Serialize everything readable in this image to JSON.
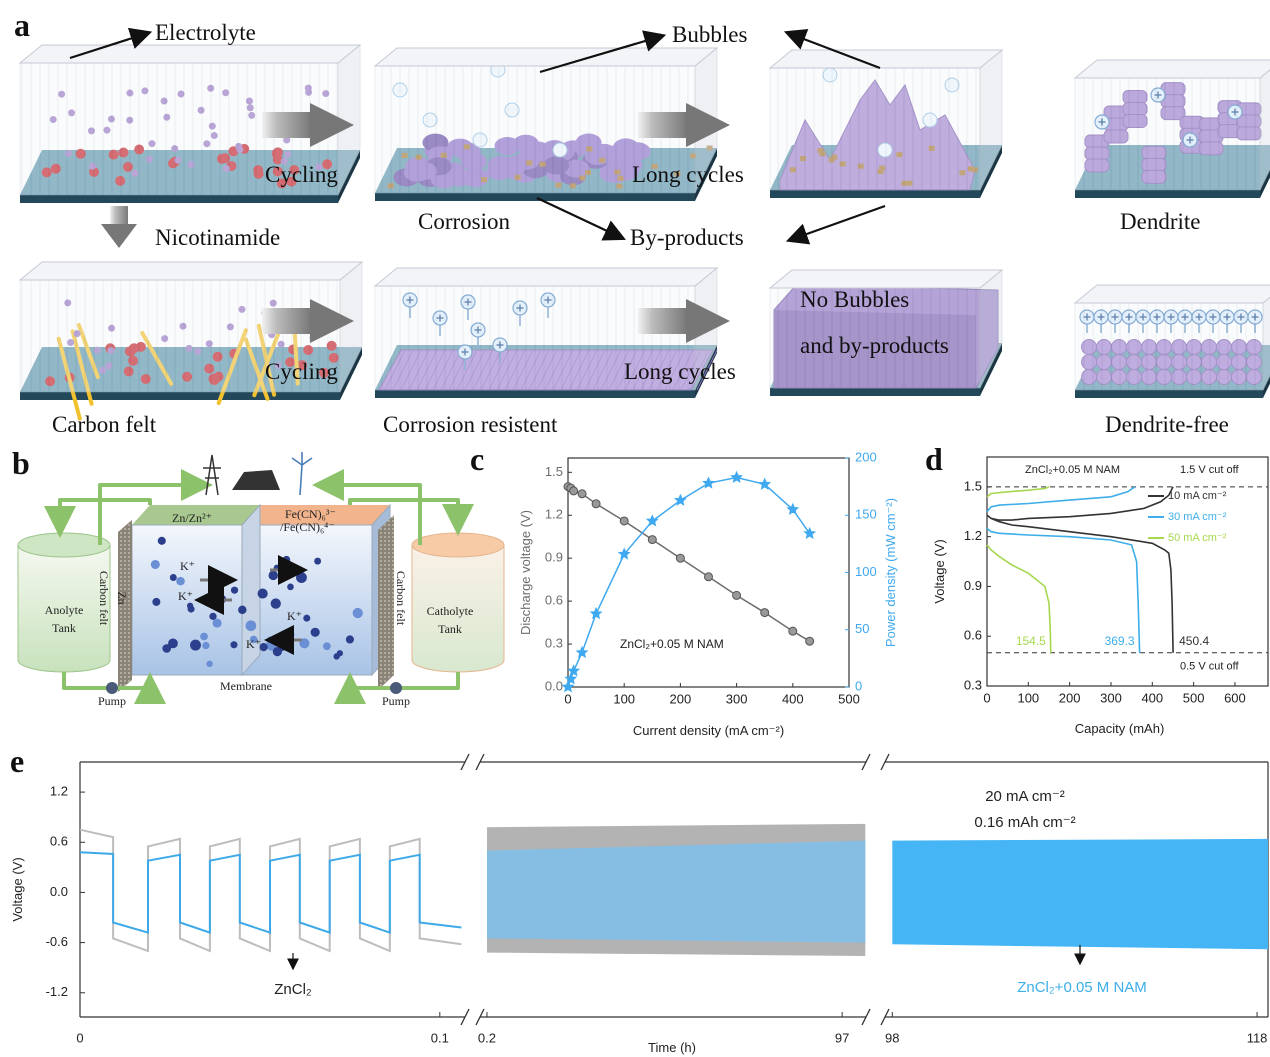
{
  "panel_a": {
    "label": "a",
    "electrolyte": "Electrolyte",
    "bubbles": "Bubbles",
    "cycling_1": "Cycling",
    "long_cycles_1": "Long cycles",
    "corrosion": "Corrosion",
    "by_products": "By-products",
    "nicotinamide": "Nicotinamide",
    "dendrite": "Dendrite",
    "cycling_2": "Cycling",
    "long_cycles_2": "Long cycles",
    "no_bubbles": "No Bubbles",
    "and_by_products": "and by-products",
    "carbon_felt": "Carbon felt",
    "corrosion_resistent": "Corrosion resistent",
    "dendrite_free": "Dendrite-free"
  },
  "panel_b": {
    "label": "b",
    "anode": "Zn/Zn²⁺",
    "cathode_1": "Fe(CN)₆³⁻",
    "cathode_2": "/Fe(CN)₆⁴⁻",
    "anolyte": "Anolyte",
    "catholyte": "Catholyte",
    "tank": "Tank",
    "zn": "Zn",
    "carbon_felt": "Carbon felt",
    "membrane": "Membrane",
    "pump": "Pump",
    "ion": "K⁺"
  },
  "chart_data": [
    {
      "type": "line",
      "label": "c",
      "annotation": "ZnCl₂+0.05 M NAM",
      "xlabel": "Current density (mA cm⁻²)",
      "ylabel": "Discharge voltage (V)",
      "y2label": "Power density (mW cm⁻²)",
      "x": [
        0,
        5,
        10,
        25,
        50,
        100,
        150,
        200,
        250,
        300,
        350,
        400,
        430
      ],
      "series": [
        {
          "marker": "circle",
          "color": "#6d6d6d",
          "values": [
            1.4,
            1.39,
            1.37,
            1.35,
            1.28,
            1.16,
            1.03,
            0.9,
            0.77,
            0.64,
            0.52,
            0.39,
            0.32
          ]
        },
        {
          "marker": "star",
          "axis": "y2",
          "color": "#3fa9f0",
          "values": [
            0,
            7,
            14,
            30,
            64,
            116,
            145,
            163,
            178,
            183,
            177,
            155,
            134
          ]
        }
      ],
      "xlim": [
        0,
        500
      ],
      "xticks": [
        0,
        100,
        200,
        300,
        400,
        500
      ],
      "ylim": [
        0,
        1.6
      ],
      "yticks": [
        {
          "value": 0,
          "label": "0.0"
        },
        0.3,
        0.6,
        0.9,
        1.2,
        1.5
      ],
      "y2lim": [
        0,
        200
      ],
      "y2ticks": [
        0,
        50,
        100,
        150,
        200
      ]
    },
    {
      "type": "line",
      "label": "d",
      "annotation": "ZnCl₂+0.05 M NAM",
      "xlabel": "Capacity (mAh)",
      "ylabel": "Voltage (V)",
      "legend": "upper right",
      "series": [
        {
          "name": "10 mA cm⁻²",
          "color": "#333333",
          "capacity": 450.4,
          "x": [
            0,
            10,
            30,
            60,
            100,
            200,
            300,
            380,
            420,
            440,
            450,
            null,
            0,
            10,
            30,
            60,
            100,
            200,
            300,
            400,
            430,
            440,
            445,
            448,
            450.4
          ],
          "values": [
            1.33,
            1.31,
            1.3,
            1.3,
            1.31,
            1.32,
            1.34,
            1.37,
            1.41,
            1.45,
            1.5,
            null,
            1.33,
            1.31,
            1.29,
            1.27,
            1.26,
            1.23,
            1.2,
            1.16,
            1.12,
            1.1,
            1.0,
            0.8,
            0.5
          ]
        },
        {
          "name": "30 mA cm⁻²",
          "color": "#3daee9",
          "capacity": 369.3,
          "x": [
            0,
            10,
            30,
            100,
            200,
            300,
            340,
            358,
            null,
            0,
            10,
            30,
            100,
            200,
            300,
            350,
            362,
            366,
            369.3
          ],
          "values": [
            1.35,
            1.38,
            1.39,
            1.4,
            1.42,
            1.44,
            1.47,
            1.5,
            null,
            1.25,
            1.23,
            1.22,
            1.21,
            1.2,
            1.18,
            1.15,
            1.05,
            0.8,
            0.5
          ]
        },
        {
          "name": "50 mA cm⁻²",
          "color": "#a6d84f",
          "capacity": 154.5,
          "x": [
            0,
            10,
            50,
            100,
            140,
            150,
            null,
            0,
            10,
            30,
            60,
            100,
            140,
            150,
            153,
            154.5
          ],
          "values": [
            1.44,
            1.46,
            1.47,
            1.48,
            1.49,
            1.5,
            null,
            1.15,
            1.12,
            1.08,
            1.03,
            0.98,
            0.9,
            0.8,
            0.65,
            0.5
          ]
        }
      ],
      "cutoffs": [
        {
          "value": 1.5,
          "label": "1.5 V cut off"
        },
        {
          "value": 0.5,
          "label": "0.5 V cut off"
        }
      ],
      "xlim": [
        0,
        680
      ],
      "xticks": [
        0,
        100,
        200,
        300,
        400,
        500,
        600
      ],
      "ylim": [
        0.3,
        1.68
      ],
      "yticks": [
        0.3,
        0.6,
        0.9,
        1.2,
        1.5
      ]
    },
    {
      "type": "broken-line",
      "label": "e",
      "xlabel": "Time (h)",
      "ylabel": "Voltage (V)",
      "annotations": [
        "20 mA cm⁻²",
        "0.16 mAh cm⁻²",
        "ZnCl₂",
        "ZnCl₂+0.05 M NAM"
      ],
      "ylim": [
        -1.49,
        1.56
      ],
      "yticks": [
        1.2,
        0.6,
        {
          "value": 0,
          "label": "0.0"
        },
        -0.6,
        -1.2
      ],
      "segments": [
        {
          "xlim": [
            0,
            0.107
          ],
          "xticks": [
            0,
            0.1
          ],
          "series": [
            {
              "color": "#bdbdbd",
              "x": [
                0,
                0.0092,
                0.0092,
                0.0189,
                0.0189,
                0.0278,
                0.0278,
                0.0361,
                0.0361,
                0.0444,
                0.0444,
                0.0528,
                0.0528,
                0.0611,
                0.0611,
                0.0694,
                0.0694,
                0.0778,
                0.0778,
                0.0861,
                0.0861,
                0.0944,
                0.0944,
                0.106
              ],
              "values": [
                0.75,
                0.66,
                -0.55,
                -0.7,
                0.55,
                0.64,
                -0.55,
                -0.7,
                0.55,
                0.64,
                -0.55,
                -0.7,
                0.55,
                0.64,
                -0.55,
                -0.7,
                0.55,
                0.64,
                -0.55,
                -0.7,
                0.55,
                0.64,
                -0.55,
                -0.62
              ]
            },
            {
              "color": "#3ea9e8",
              "x": [
                0,
                0.0092,
                0.0092,
                0.0189,
                0.0189,
                0.0278,
                0.0278,
                0.0361,
                0.0361,
                0.0444,
                0.0444,
                0.0528,
                0.0528,
                0.0611,
                0.0611,
                0.0694,
                0.0694,
                0.0778,
                0.0778,
                0.0861,
                0.0861,
                0.0944,
                0.0944,
                0.106
              ],
              "values": [
                0.48,
                0.46,
                -0.36,
                -0.48,
                0.38,
                0.45,
                -0.36,
                -0.48,
                0.38,
                0.45,
                -0.36,
                -0.48,
                0.38,
                0.45,
                -0.36,
                -0.48,
                0.38,
                0.45,
                -0.36,
                -0.48,
                0.38,
                0.45,
                -0.36,
                -0.42
              ]
            }
          ]
        },
        {
          "xlim": [
            -1.7,
            103.5
          ],
          "xticks": [
            0.2,
            97
          ],
          "series": [
            {
              "color": "#b3b3b3",
              "x": [
                0.2,
                103.3
              ],
              "high": [
                0.78,
                0.82
              ],
              "low": [
                -0.72,
                -0.76
              ]
            },
            {
              "color": "#86bde3",
              "x": [
                0.2,
                103.3
              ],
              "high": [
                0.5,
                0.62
              ],
              "low": [
                -0.55,
                -0.6
              ]
            }
          ]
        },
        {
          "xlim": [
            97.6,
            118.6
          ],
          "xticks": [
            98,
            118
          ],
          "series": [
            {
              "color": "#45b5f5",
              "x": [
                98,
                118.6
              ],
              "high": [
                0.62,
                0.64
              ],
              "low": [
                -0.62,
                -0.68
              ]
            }
          ]
        }
      ]
    }
  ]
}
